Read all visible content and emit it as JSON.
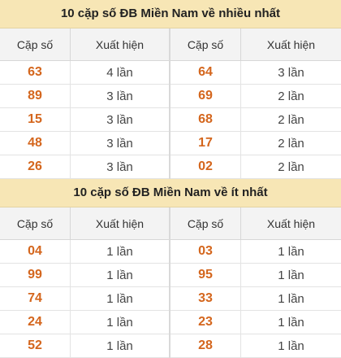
{
  "sections": [
    {
      "title": "10 cặp số ĐB Miền Nam về nhiều nhất",
      "header_pair": "Cặp số",
      "header_times": "Xuất hiện",
      "left": [
        {
          "pair": "63",
          "times": "4 lần"
        },
        {
          "pair": "89",
          "times": "3 lần"
        },
        {
          "pair": "15",
          "times": "3 lần"
        },
        {
          "pair": "48",
          "times": "3 lần"
        },
        {
          "pair": "26",
          "times": "3 lần"
        }
      ],
      "right": [
        {
          "pair": "64",
          "times": "3 lần"
        },
        {
          "pair": "69",
          "times": "2 lần"
        },
        {
          "pair": "68",
          "times": "2 lần"
        },
        {
          "pair": "17",
          "times": "2 lần"
        },
        {
          "pair": "02",
          "times": "2 lần"
        }
      ]
    },
    {
      "title": "10 cặp số ĐB Miền Nam về ít nhất",
      "header_pair": "Cặp số",
      "header_times": "Xuất hiện",
      "left": [
        {
          "pair": "04",
          "times": "1 lần"
        },
        {
          "pair": "99",
          "times": "1 lần"
        },
        {
          "pair": "74",
          "times": "1 lần"
        },
        {
          "pair": "24",
          "times": "1 lần"
        },
        {
          "pair": "52",
          "times": "1 lần"
        }
      ],
      "right": [
        {
          "pair": "03",
          "times": "1 lần"
        },
        {
          "pair": "95",
          "times": "1 lần"
        },
        {
          "pair": "33",
          "times": "1 lần"
        },
        {
          "pair": "23",
          "times": "1 lần"
        },
        {
          "pair": "28",
          "times": "1 lần"
        }
      ]
    }
  ],
  "colors": {
    "title_background": "#f7e6b5",
    "pair_number": "#d4661d",
    "header_background": "#f3f3f3"
  }
}
